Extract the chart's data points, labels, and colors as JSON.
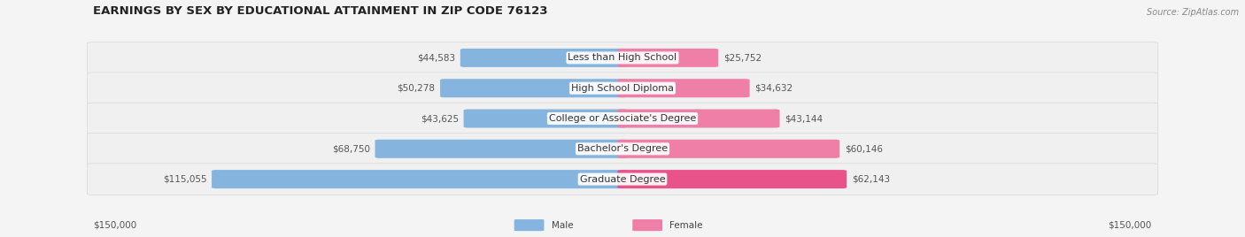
{
  "title": "EARNINGS BY SEX BY EDUCATIONAL ATTAINMENT IN ZIP CODE 76123",
  "source": "Source: ZipAtlas.com",
  "categories": [
    "Less than High School",
    "High School Diploma",
    "College or Associate's Degree",
    "Bachelor's Degree",
    "Graduate Degree"
  ],
  "male_values": [
    44583,
    50278,
    43625,
    68750,
    115055
  ],
  "female_values": [
    25752,
    34632,
    43144,
    60146,
    62143
  ],
  "male_color": "#85B4DE",
  "female_color": "#F07FA8",
  "female_color_last": "#E8538A",
  "max_val": 150000,
  "bg_color": "#F4F4F4",
  "row_bg_color": "#EFEFEF",
  "row_sep_color": "#DFDFDF",
  "title_fontsize": 9.5,
  "label_fontsize": 8.0,
  "value_fontsize": 7.5,
  "source_fontsize": 7.0
}
